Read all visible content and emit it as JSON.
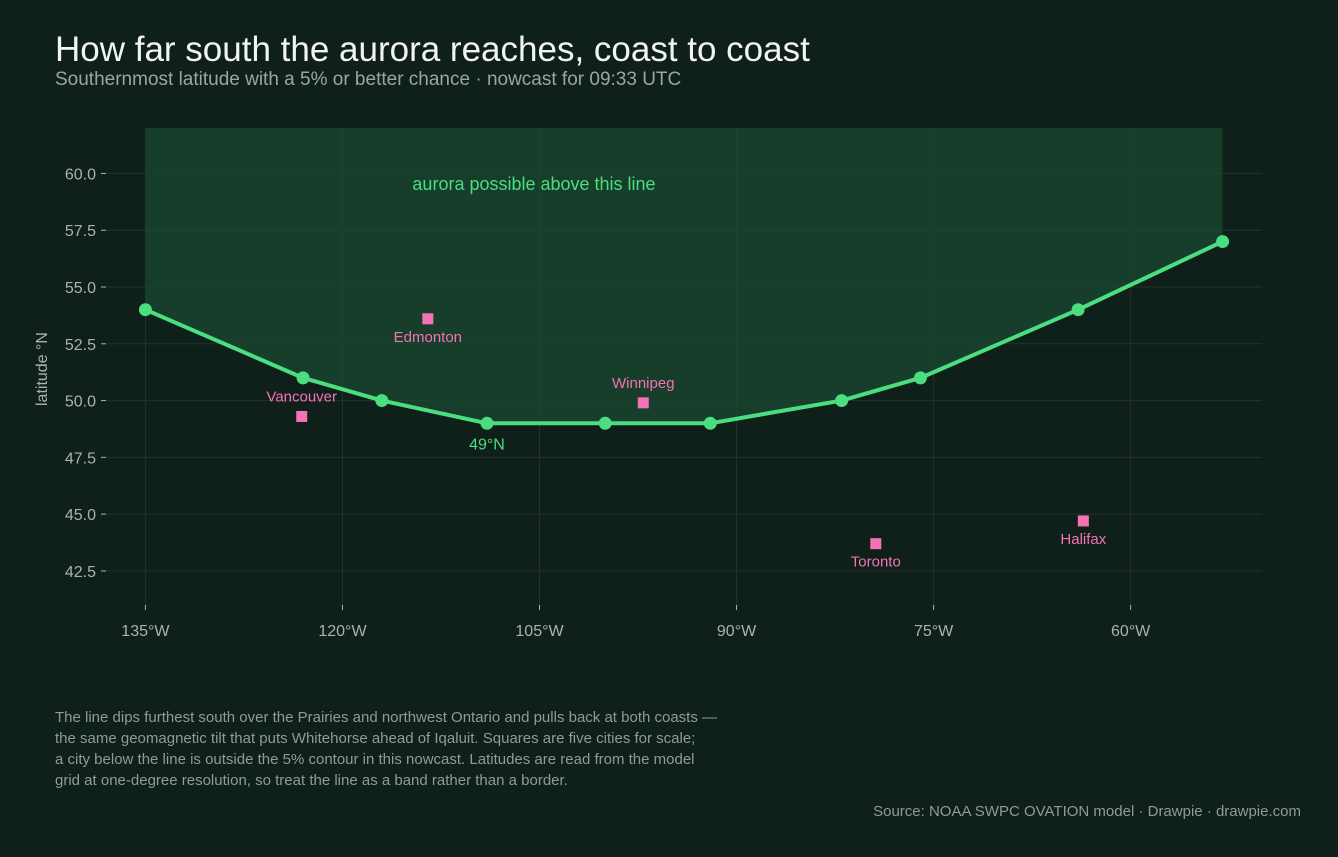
{
  "header": {
    "title": "How far south the aurora reaches, coast to coast",
    "subtitle": "Southernmost latitude with a 5% or better chance  ·  nowcast for 09:33 UTC"
  },
  "colors": {
    "background": "#0f1f1a",
    "line": "#4ade80",
    "band_fill": "#1a4a30",
    "city_marker": "#f472b6",
    "grid": "#24332d"
  },
  "chart_data": {
    "type": "line",
    "ylabel": "latitude °N",
    "xlim": [
      -138,
      -50
    ],
    "ylim": [
      41,
      62
    ],
    "y_ticks": [
      42.5,
      45.0,
      47.5,
      50.0,
      52.5,
      55.0,
      57.5,
      60.0
    ],
    "y_tick_labels": [
      "42.5",
      "45.0",
      "47.5",
      "50.0",
      "52.5",
      "55.0",
      "57.5",
      "60.0"
    ],
    "x_ticks": [
      -135,
      -120,
      -105,
      -90,
      -75,
      -60
    ],
    "x_tick_labels": [
      "135°W",
      "120°W",
      "105°W",
      "90°W",
      "75°W",
      "60°W"
    ],
    "grid": true,
    "series": [
      {
        "x": [
          -135,
          -123,
          -117,
          -109,
          -100,
          -92,
          -82,
          -76,
          -64,
          -53
        ],
        "y": [
          54,
          51,
          50,
          49,
          49,
          49,
          50,
          51,
          54,
          57
        ]
      }
    ],
    "shaded_region": {
      "from_line_to": 62,
      "label": "aurora possible above this line"
    },
    "min_annotation": {
      "x": -109,
      "y": 49,
      "label": "49°N"
    },
    "cities": [
      {
        "name": "Vancouver",
        "lon": -123.1,
        "lat": 49.3,
        "label_pos": "above"
      },
      {
        "name": "Edmonton",
        "lon": -113.5,
        "lat": 53.6,
        "label_pos": "below"
      },
      {
        "name": "Winnipeg",
        "lon": -97.1,
        "lat": 49.9,
        "label_pos": "above"
      },
      {
        "name": "Toronto",
        "lon": -79.4,
        "lat": 43.7,
        "label_pos": "below"
      },
      {
        "name": "Halifax",
        "lon": -63.6,
        "lat": 44.7,
        "label_pos": "below"
      }
    ]
  },
  "footnote": {
    "lines": [
      "The line dips furthest south over the Prairies and northwest Ontario and pulls back at both coasts —",
      "the same geomagnetic tilt that puts Whitehorse ahead of Iqaluit. Squares are five cities for scale;",
      "a city below the line is outside the 5% contour in this nowcast. Latitudes are read from the model",
      "grid at one-degree resolution, so treat the line as a band rather than a border."
    ]
  },
  "source": "Source: NOAA SWPC OVATION model  ·  Drawpie · drawpie.com"
}
